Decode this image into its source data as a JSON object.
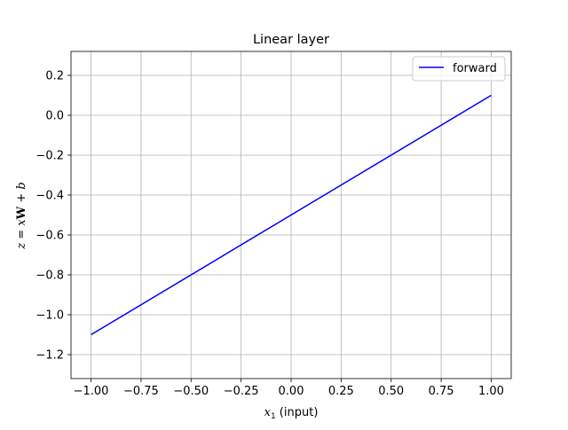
{
  "chart_data": {
    "type": "line",
    "title": "Linear layer",
    "xlabel": {
      "base": "x",
      "subscript": "1",
      "suffix": " (input)"
    },
    "ylabel": {
      "z": "z",
      "eq": " = ",
      "x": "x",
      "W": "W",
      "plus": " + ",
      "b": "b"
    },
    "xlim": [
      -1.1,
      1.1
    ],
    "ylim": [
      -1.32,
      0.32
    ],
    "xticks": [
      -1.0,
      -0.75,
      -0.5,
      -0.25,
      0.0,
      0.25,
      0.5,
      0.75,
      1.0
    ],
    "xtick_labels": [
      "−1.00",
      "−0.75",
      "−0.50",
      "−0.25",
      "0.00",
      "0.25",
      "0.50",
      "0.75",
      "1.00"
    ],
    "yticks": [
      -1.2,
      -1.0,
      -0.8,
      -0.6,
      -0.4,
      -0.2,
      0.0,
      0.2
    ],
    "ytick_labels": [
      "−1.2",
      "−1.0",
      "−0.8",
      "−0.6",
      "−0.4",
      "−0.2",
      "0.0",
      "0.2"
    ],
    "grid": true,
    "legend_position": "top-right",
    "series": [
      {
        "name": "forward",
        "color": "#0000ff",
        "x": [
          -1.0,
          1.0
        ],
        "y": [
          -1.1,
          0.1
        ]
      }
    ]
  }
}
